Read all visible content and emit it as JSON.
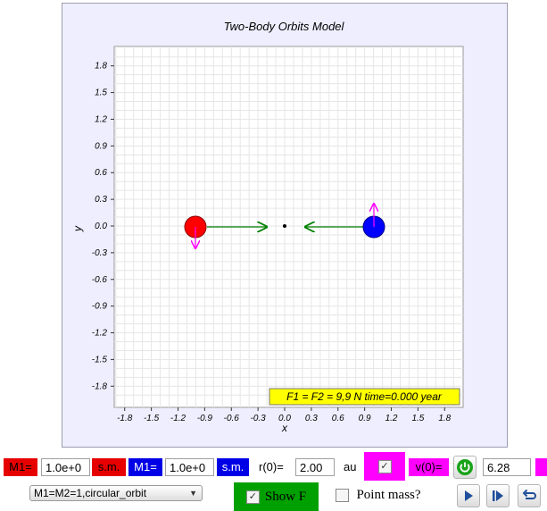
{
  "plot": {
    "title": "Two-Body Orbits Model",
    "xlabel": "x",
    "ylabel": "y",
    "x_ticks": [
      "-1.8",
      "-1.5",
      "-1.2",
      "-0.9",
      "-0.6",
      "-0.3",
      "0.0",
      "0.3",
      "0.6",
      "0.9",
      "1.2",
      "1.5",
      "1.8"
    ],
    "y_ticks": [
      "1.8",
      "1.5",
      "1.2",
      "0.9",
      "0.6",
      "0.3",
      "0.0",
      "-0.3",
      "-0.6",
      "-0.9",
      "-1.2",
      "-1.5",
      "-1.8"
    ],
    "status_text": "F1 = F2 = 9,9 N time=0.000 year",
    "range": [
      -2.0,
      2.0
    ],
    "body1": {
      "x": -1.0,
      "y": 0.0,
      "color": "#ff0000"
    },
    "body2": {
      "x": 1.0,
      "y": 0.0,
      "color": "#0000ff"
    },
    "center_of_mass": {
      "x": 0.0,
      "y": 0.0
    },
    "velocity_color": "#ff00ff",
    "force_color": "#008000"
  },
  "controls": {
    "m1_label": "M1=",
    "m1_value": "1.0e+0",
    "m1_unit": "s.m.",
    "m2_label": "M1=",
    "m2_value": "1.0e+0",
    "m2_unit": "s.m.",
    "r0_label": "r(0)=",
    "r0_value": "2.00",
    "r0_unit": "au",
    "v0_label": "v(0)=",
    "v0_value": "6.28",
    "preset_selected": "M1=M2=1,circular_orbit",
    "show_f_label": "Show F",
    "point_mass_label": "Point mass?"
  },
  "colors": {
    "m1": "#e60000",
    "m2": "#0000e6",
    "v0": "#ff00ff",
    "show_f": "#00a000",
    "status_bg": "#ffff00"
  }
}
